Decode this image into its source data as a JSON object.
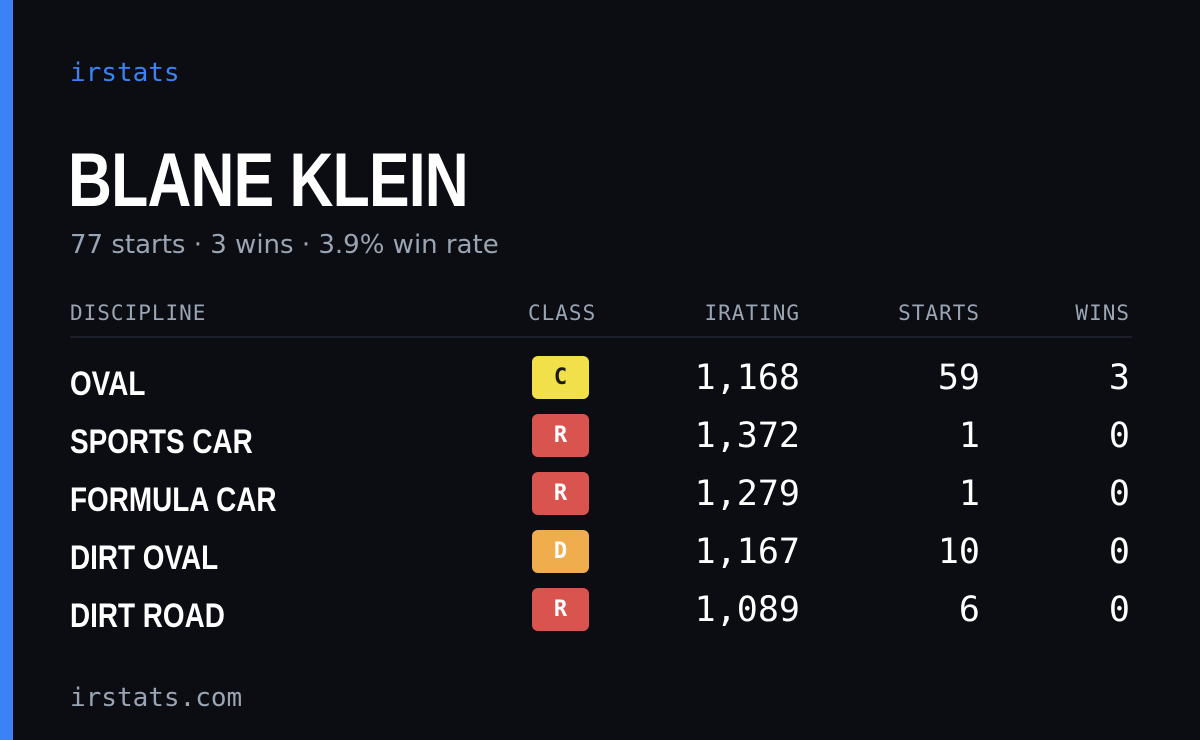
{
  "brand": "irstats",
  "driver": {
    "name": "BLANE KLEIN",
    "summary": "77 starts · 3 wins · 3.9% win rate"
  },
  "table": {
    "headers": {
      "discipline": "DISCIPLINE",
      "class": "CLASS",
      "irating": "IRATING",
      "starts": "STARTS",
      "wins": "WINS"
    },
    "rows": [
      {
        "discipline": "OVAL",
        "class": "C",
        "class_color": "#f2e04a",
        "class_text_color": "#1a1a1a",
        "irating": "1,168",
        "starts": "59",
        "wins": "3"
      },
      {
        "discipline": "SPORTS CAR",
        "class": "R",
        "class_color": "#d9534f",
        "class_text_color": "#ffffff",
        "irating": "1,372",
        "starts": "1",
        "wins": "0"
      },
      {
        "discipline": "FORMULA CAR",
        "class": "R",
        "class_color": "#d9534f",
        "class_text_color": "#ffffff",
        "irating": "1,279",
        "starts": "1",
        "wins": "0"
      },
      {
        "discipline": "DIRT OVAL",
        "class": "D",
        "class_color": "#f0ad4e",
        "class_text_color": "#ffffff",
        "irating": "1,167",
        "starts": "10",
        "wins": "0"
      },
      {
        "discipline": "DIRT ROAD",
        "class": "R",
        "class_color": "#d9534f",
        "class_text_color": "#ffffff",
        "irating": "1,089",
        "starts": "6",
        "wins": "0"
      }
    ]
  },
  "footer": "irstats.com",
  "colors": {
    "accent": "#3b82f6",
    "background": "#0b0d13",
    "muted_text": "#9aa4b2"
  }
}
